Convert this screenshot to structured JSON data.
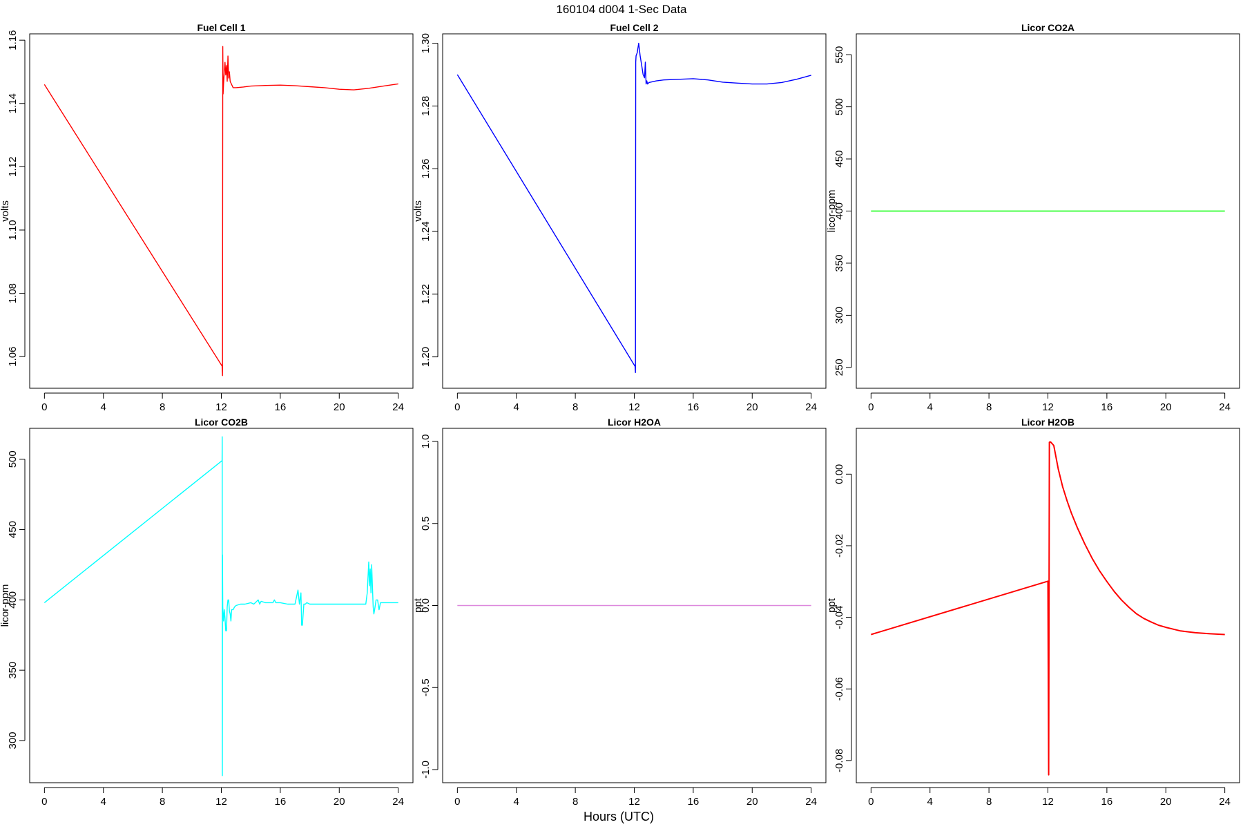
{
  "figure": {
    "title": "160104   d004   1-Sec Data",
    "xlabel": "Hours (UTC)"
  },
  "chart_data": [
    {
      "type": "line",
      "title": "Fuel Cell 1",
      "xlabel": "",
      "ylabel": "volts",
      "xlim": [
        -1,
        25
      ],
      "ylim": [
        1.05,
        1.162
      ],
      "xticks": [
        0,
        4,
        8,
        12,
        16,
        20,
        24
      ],
      "yticks": [
        1.06,
        1.08,
        1.1,
        1.12,
        1.14,
        1.16
      ],
      "ytick_labels": [
        "1.06",
        "1.08",
        "1.10",
        "1.12",
        "1.14",
        "1.16"
      ],
      "color": "#ff0000",
      "series": [
        {
          "x": [
            0,
            12.05,
            12.08,
            12.1,
            12.12,
            12.15,
            12.2,
            12.25,
            12.3,
            12.35,
            12.4,
            12.45,
            12.5,
            12.55,
            12.6,
            12.7,
            12.8,
            13,
            13.5,
            14,
            15,
            16,
            17,
            18,
            19,
            20,
            21,
            22,
            23,
            24
          ],
          "y": [
            1.146,
            1.057,
            1.054,
            1.158,
            1.143,
            1.146,
            1.15,
            1.153,
            1.149,
            1.152,
            1.147,
            1.155,
            1.148,
            1.15,
            1.147,
            1.146,
            1.145,
            1.145,
            1.1452,
            1.1455,
            1.1457,
            1.1458,
            1.1456,
            1.1453,
            1.145,
            1.1445,
            1.1443,
            1.1448,
            1.1455,
            1.1462
          ]
        }
      ]
    },
    {
      "type": "line",
      "title": "Fuel Cell 2",
      "xlabel": "",
      "ylabel": "volts",
      "xlim": [
        -1,
        25
      ],
      "ylim": [
        1.19,
        1.303
      ],
      "xticks": [
        0,
        4,
        8,
        12,
        16,
        20,
        24
      ],
      "yticks": [
        1.2,
        1.22,
        1.24,
        1.26,
        1.28,
        1.3
      ],
      "ytick_labels": [
        "1.20",
        "1.22",
        "1.24",
        "1.26",
        "1.28",
        "1.30"
      ],
      "color": "#0000ff",
      "series": [
        {
          "x": [
            0,
            12.05,
            12.08,
            12.1,
            12.12,
            12.2,
            12.3,
            12.4,
            12.5,
            12.6,
            12.7,
            12.75,
            12.8,
            12.85,
            12.9,
            13,
            13.5,
            14,
            15,
            16,
            17,
            18,
            19,
            20,
            21,
            22,
            23,
            24
          ],
          "y": [
            1.29,
            1.197,
            1.195,
            1.294,
            1.296,
            1.297,
            1.3,
            1.296,
            1.293,
            1.29,
            1.289,
            1.294,
            1.287,
            1.288,
            1.287,
            1.2875,
            1.288,
            1.2883,
            1.2885,
            1.2887,
            1.2883,
            1.2876,
            1.2873,
            1.287,
            1.287,
            1.2875,
            1.2885,
            1.2898
          ]
        }
      ]
    },
    {
      "type": "line",
      "title": "Licor CO2A",
      "xlabel": "",
      "ylabel": "licor-ppm",
      "xlim": [
        -1,
        25
      ],
      "ylim": [
        230,
        570
      ],
      "xticks": [
        0,
        4,
        8,
        12,
        16,
        20,
        24
      ],
      "yticks": [
        250,
        300,
        350,
        400,
        450,
        500,
        550
      ],
      "ytick_labels": [
        "250",
        "300",
        "350",
        "400",
        "450",
        "500",
        "550"
      ],
      "color": "#00ff00",
      "series": [
        {
          "x": [
            0,
            24
          ],
          "y": [
            400,
            400
          ]
        }
      ]
    },
    {
      "type": "line",
      "title": "Licor CO2B",
      "xlabel": "",
      "ylabel": "licor-ppm",
      "xlim": [
        -1,
        25
      ],
      "ylim": [
        270,
        522
      ],
      "xticks": [
        0,
        4,
        8,
        12,
        16,
        20,
        24
      ],
      "yticks": [
        300,
        350,
        400,
        450,
        500
      ],
      "ytick_labels": [
        "300",
        "350",
        "400",
        "450",
        "500"
      ],
      "color": "#00ffff",
      "series": [
        {
          "x": [
            0,
            12.05,
            12.06,
            12.07,
            12.08,
            12.1,
            12.12,
            12.15,
            12.2,
            12.25,
            12.3,
            12.35,
            12.4,
            12.45,
            12.5,
            12.55,
            12.6,
            12.65,
            12.7,
            12.8,
            12.9,
            13,
            13.3,
            13.6,
            14,
            14.2,
            14.5,
            14.6,
            14.7,
            15,
            15.5,
            15.6,
            15.7,
            16,
            16.5,
            17,
            17.2,
            17.3,
            17.4,
            17.45,
            17.5,
            17.6,
            17.65,
            17.7,
            17.8,
            18,
            18.5,
            19,
            20,
            21,
            21.8,
            21.9,
            22.0,
            22.05,
            22.1,
            22.15,
            22.2,
            22.25,
            22.3,
            22.35,
            22.4,
            22.5,
            22.6,
            22.7,
            22.8,
            22.9,
            23,
            23.5,
            24
          ],
          "y": [
            398,
            499,
            516,
            275,
            432,
            395,
            390,
            385,
            393,
            387,
            378,
            378,
            395,
            400,
            400,
            392,
            390,
            385,
            393,
            393,
            395,
            396,
            397,
            397,
            398,
            397,
            400,
            397,
            399,
            398,
            398,
            400,
            398,
            398,
            397,
            397,
            407,
            397,
            405,
            382,
            382,
            397,
            397,
            397,
            398,
            397,
            397,
            397,
            397,
            397,
            397,
            405,
            427,
            410,
            422,
            405,
            425,
            410,
            395,
            390,
            393,
            400,
            400,
            393,
            398,
            398,
            398,
            398,
            398
          ]
        }
      ]
    },
    {
      "type": "line",
      "title": "Licor H2OA",
      "xlabel": "",
      "ylabel": "ppt",
      "xlim": [
        -1,
        25
      ],
      "ylim": [
        -1.08,
        1.08
      ],
      "xticks": [
        0,
        4,
        8,
        12,
        16,
        20,
        24
      ],
      "yticks": [
        -1.0,
        -0.5,
        0.0,
        0.5,
        1.0
      ],
      "ytick_labels": [
        "-1.0",
        "-0.5",
        "0.0",
        "0.5",
        "1.0"
      ],
      "color": "#dd88dd",
      "series": [
        {
          "x": [
            0,
            24
          ],
          "y": [
            0,
            0
          ]
        }
      ]
    },
    {
      "type": "line",
      "title": "Licor H2OB",
      "xlabel": "",
      "ylabel": "ppt",
      "xlim": [
        -1,
        25
      ],
      "ylim": [
        -0.0862,
        0.0128
      ],
      "xticks": [
        0,
        4,
        8,
        12,
        16,
        20,
        24
      ],
      "yticks": [
        -0.08,
        -0.06,
        -0.04,
        -0.02,
        0.0
      ],
      "ytick_labels": [
        "-0.08",
        "-0.06",
        "-0.04",
        "-0.02",
        "0.00"
      ],
      "color": "#ff0000",
      "series": [
        {
          "x": [
            0,
            12.0,
            12.05,
            12.1,
            12.15,
            12.2,
            12.4,
            12.7,
            13.0,
            13.3,
            13.6,
            14.0,
            14.5,
            15.0,
            15.5,
            16.0,
            16.5,
            17.0,
            17.5,
            18.0,
            18.5,
            19.0,
            19.5,
            20.0,
            20.5,
            21.0,
            22.0,
            23.0,
            24.0
          ],
          "y": [
            -0.0448,
            -0.0299,
            -0.084,
            0.0089,
            0.009,
            0.0089,
            0.008,
            0.0015,
            -0.0035,
            -0.0075,
            -0.011,
            -0.015,
            -0.0195,
            -0.0235,
            -0.027,
            -0.03,
            -0.0328,
            -0.0352,
            -0.0372,
            -0.039,
            -0.0403,
            -0.0413,
            -0.0422,
            -0.0428,
            -0.0433,
            -0.0438,
            -0.0443,
            -0.0446,
            -0.0448
          ]
        }
      ]
    }
  ]
}
